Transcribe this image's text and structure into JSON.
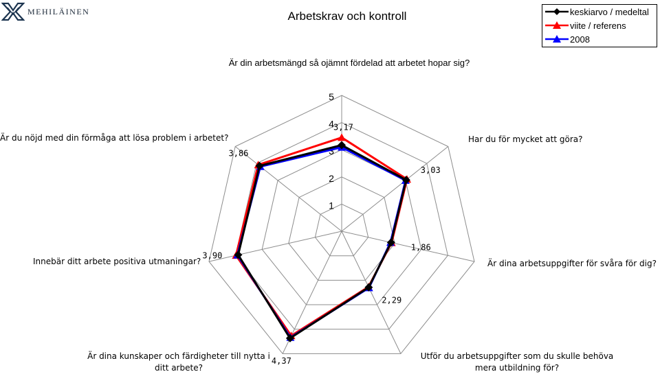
{
  "brand": {
    "name": "MEHILÄINEN",
    "logo_icon": "mehilainen-logo-icon"
  },
  "chart_data": {
    "type": "radar",
    "title": "Arbetskrav och kontroll",
    "axes": [
      "Är din arbetsmängd så ojämnt fördelad att arbetet hopar sig?",
      "Har du för mycket att göra?",
      "Är dina arbetsuppgifter för svåra för dig?",
      "Utför du arbetsuppgifter som du skulle behöva mera utbildning för?",
      "Är dina kunskaper och färdigheter till nytta i ditt arbete?",
      "Innebär ditt arbete positiva utmaningar?",
      "Är du nöjd med din förmåga att lösa problem i arbetet?"
    ],
    "axis_min": 0,
    "axis_max": 5,
    "ticks": [
      "1",
      "2",
      "3",
      "4",
      "5"
    ],
    "series": [
      {
        "name": "keskiarvo / medeltal",
        "color": "#000000",
        "marker": "diamond",
        "values": [
          3.17,
          3.03,
          1.86,
          2.29,
          4.37,
          3.9,
          3.86
        ]
      },
      {
        "name": "viite / referens",
        "color": "#ff0000",
        "marker": "triangle",
        "values": [
          3.45,
          3.07,
          1.88,
          2.27,
          4.27,
          3.98,
          3.92
        ]
      },
      {
        "name": "2008",
        "color": "#0000ff",
        "marker": "triangle",
        "values": [
          3.09,
          3.0,
          1.84,
          2.31,
          4.34,
          3.93,
          3.82
        ]
      }
    ],
    "data_labels": [
      "3,17",
      "3,03",
      "1,86",
      "2,29",
      "4,37",
      "3,90",
      "3,86"
    ],
    "legend": {
      "position": "top-right"
    },
    "grid": true
  }
}
